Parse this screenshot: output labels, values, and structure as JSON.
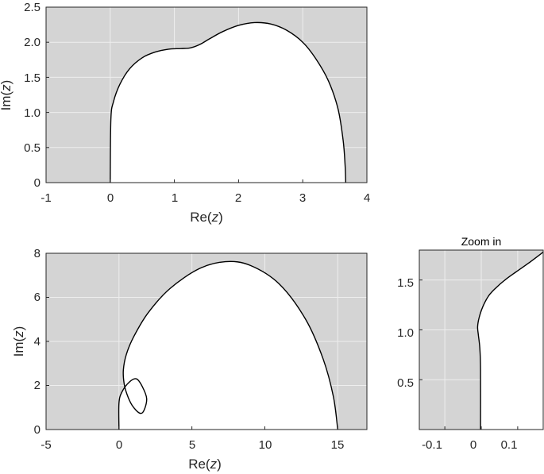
{
  "chart_data": [
    {
      "type": "area",
      "xlabel": "Re(z)",
      "ylabel": "Im(z)",
      "xlim": [
        -1,
        4
      ],
      "ylim": [
        0,
        2.5
      ],
      "xticks": [
        "-1",
        "0",
        "1",
        "2",
        "3",
        "4"
      ],
      "yticks": [
        "0",
        "0.5",
        "1.0",
        "1.5",
        "2.0",
        "2.5"
      ],
      "grid": true,
      "colors": {
        "shaded": "#d4d4d4",
        "region": "#ffffff",
        "boundary": "#000000",
        "grid": "#eeeeee"
      },
      "boundary": [
        [
          0.0,
          0.0
        ],
        [
          0.01,
          0.9
        ],
        [
          0.05,
          1.15
        ],
        [
          0.15,
          1.4
        ],
        [
          0.3,
          1.62
        ],
        [
          0.5,
          1.78
        ],
        [
          0.7,
          1.86
        ],
        [
          0.9,
          1.9
        ],
        [
          1.1,
          1.91
        ],
        [
          1.25,
          1.92
        ],
        [
          1.4,
          1.97
        ],
        [
          1.55,
          2.05
        ],
        [
          1.75,
          2.15
        ],
        [
          2.0,
          2.24
        ],
        [
          2.25,
          2.28
        ],
        [
          2.5,
          2.26
        ],
        [
          2.75,
          2.17
        ],
        [
          3.0,
          2.0
        ],
        [
          3.2,
          1.77
        ],
        [
          3.4,
          1.45
        ],
        [
          3.55,
          1.05
        ],
        [
          3.63,
          0.6
        ],
        [
          3.66,
          0.25
        ],
        [
          3.67,
          0.0
        ]
      ]
    },
    {
      "type": "area",
      "xlabel": "Re(z)",
      "ylabel": "Im(z)",
      "xlim": [
        -5,
        17
      ],
      "ylim": [
        0,
        8
      ],
      "xticks": [
        "-5",
        "0",
        "5",
        "10",
        "15"
      ],
      "yticks": [
        "0",
        "2",
        "4",
        "6",
        "8"
      ],
      "grid": true,
      "colors": {
        "shaded": "#d4d4d4",
        "region": "#ffffff",
        "boundary": "#000000",
        "grid": "#eeeeee"
      },
      "boundary": [
        [
          0.0,
          0.0
        ],
        [
          0.0,
          1.2
        ],
        [
          0.2,
          1.7
        ],
        [
          0.7,
          2.15
        ],
        [
          1.2,
          2.3
        ],
        [
          1.6,
          1.95
        ],
        [
          1.9,
          1.4
        ],
        [
          1.7,
          0.85
        ],
        [
          1.4,
          0.75
        ],
        [
          0.9,
          1.1
        ],
        [
          0.55,
          1.6
        ],
        [
          0.35,
          2.1
        ],
        [
          0.3,
          2.7
        ],
        [
          0.5,
          3.4
        ],
        [
          1.0,
          4.2
        ],
        [
          2.0,
          5.3
        ],
        [
          3.5,
          6.4
        ],
        [
          5.5,
          7.3
        ],
        [
          7.3,
          7.62
        ],
        [
          9.0,
          7.45
        ],
        [
          11.0,
          6.6
        ],
        [
          12.8,
          5.0
        ],
        [
          14.0,
          3.2
        ],
        [
          14.7,
          1.5
        ],
        [
          15.0,
          0.0
        ]
      ]
    },
    {
      "type": "area",
      "title": "Zoom in",
      "xlim": [
        -0.17,
        0.17
      ],
      "ylim": [
        0,
        1.8
      ],
      "xticks": [
        "-0.1",
        "0",
        "0.1"
      ],
      "yticks": [
        "0.5",
        "1.0",
        "1.5"
      ],
      "grid": true,
      "colors": {
        "shaded": "#d4d4d4",
        "region": "#ffffff",
        "boundary": "#000000",
        "grid": "#eeeeee"
      },
      "boundary": [
        [
          -0.002,
          0.0
        ],
        [
          -0.002,
          0.6
        ],
        [
          -0.004,
          0.82
        ],
        [
          -0.008,
          0.95
        ],
        [
          -0.01,
          1.03
        ],
        [
          -0.006,
          1.12
        ],
        [
          0.004,
          1.23
        ],
        [
          0.02,
          1.34
        ],
        [
          0.04,
          1.42
        ],
        [
          0.065,
          1.5
        ],
        [
          0.095,
          1.58
        ],
        [
          0.13,
          1.67
        ],
        [
          0.17,
          1.78
        ]
      ]
    }
  ]
}
